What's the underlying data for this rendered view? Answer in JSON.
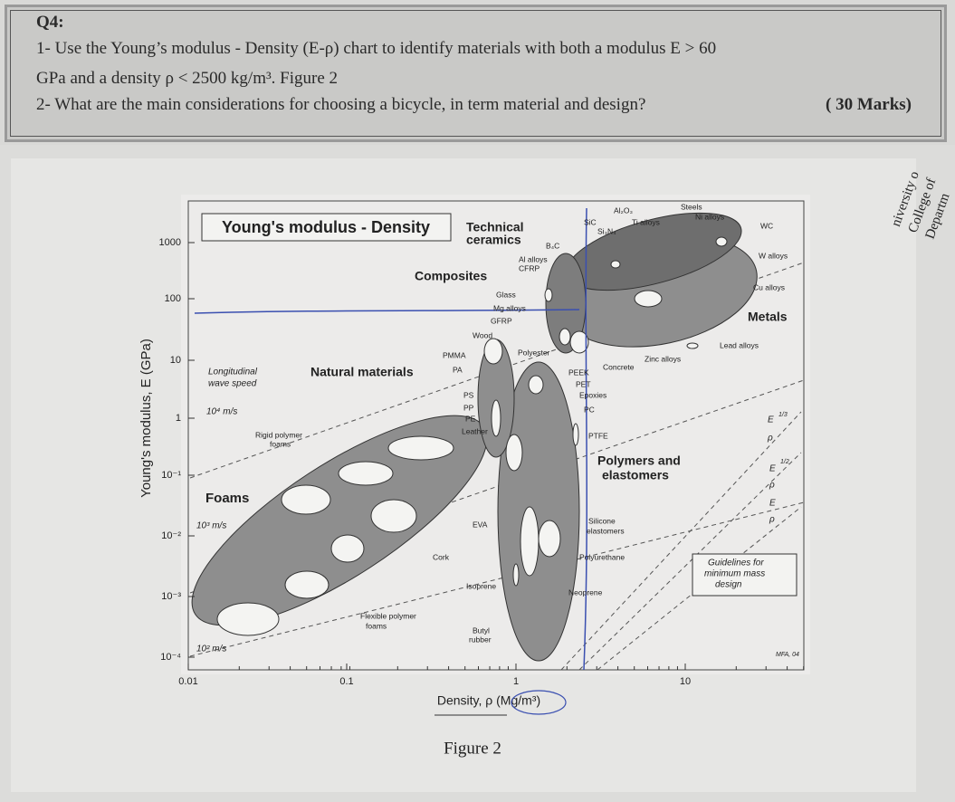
{
  "question": {
    "number": "Q4:",
    "line1": "1- Use the Young’s modulus - Density (E-ρ) chart to identify materials with both a modulus E > 60",
    "line2": "GPa and a density ρ < 2500 kg/m³. Figure 2",
    "line3": "2- What are the main considerations for choosing a bicycle, in term material and design?",
    "marks": "( 30 Marks)"
  },
  "figure": {
    "title": "Young's modulus - Density",
    "y_axis_label": "Young's modulus, E (GPa)",
    "x_axis_label": "Density, ρ (Mg/m³)",
    "yticks": [
      "1000",
      "100",
      "10",
      "1",
      "10⁻¹",
      "10⁻²",
      "10⁻³",
      "10⁻⁴"
    ],
    "xticks": [
      "0.01",
      "0.1",
      "1",
      "10"
    ],
    "family_labels": [
      "Technical",
      "ceramics",
      "Composites",
      "Natural materials",
      "Foams",
      "Polymers and",
      "elastomers",
      "Metals"
    ],
    "material_labels": [
      "Al₂O₃",
      "Steels",
      "Ni alloys",
      "SiC",
      "Si₃N₄",
      "Ti alloys",
      "WC",
      "B₄C",
      "Al alloys",
      "CFRP",
      "W alloys",
      "Cu alloys",
      "Glass",
      "Mg alloys",
      "GFRP",
      "Wood",
      "Polyester",
      "Lead alloys",
      "Zinc alloys",
      "Concrete",
      "PMMA",
      "PA",
      "PEEK",
      "PET",
      "Epoxies",
      "PC",
      "PS",
      "PP",
      "PE",
      "Leather",
      "PTFE",
      "Rigid polymer",
      "foams",
      "Silicone",
      "elastomers",
      "EVA",
      "Cork",
      "Polyurethane",
      "Isoprene",
      "Neoprene",
      "Flexible polymer",
      "foams",
      "Butyl",
      "rubber"
    ],
    "notes": [
      "Longitudinal",
      "wave speed",
      "10⁴ m/s",
      "10³ m/s",
      "10² m/s",
      "Guidelines for",
      "minimum mass",
      "design",
      "MFA, 04",
      "E",
      "ρ",
      "1/3",
      "E",
      "ρ",
      "1/2",
      "E",
      "ρ"
    ],
    "caption": "Figure 2"
  },
  "stamp": [
    "niversity o",
    "College of",
    "Departm"
  ]
}
